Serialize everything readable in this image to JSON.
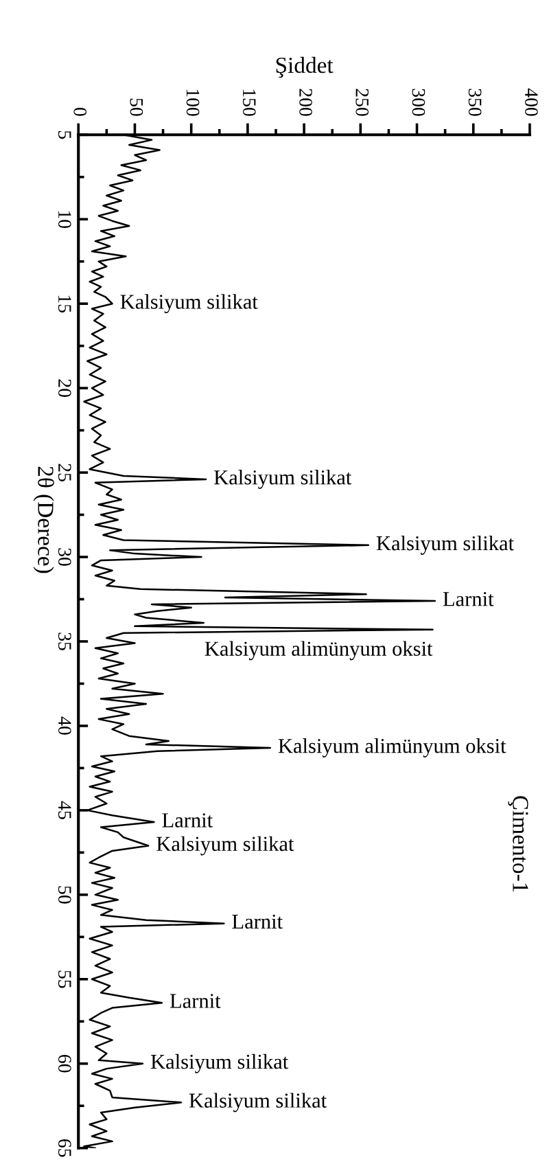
{
  "chart_data": {
    "type": "line",
    "orientation": "horizontal",
    "title": "Çimento-1",
    "ylabel": "2θ (Derece)",
    "xlabel": "Şiddet",
    "ylim": [
      65,
      5
    ],
    "yticks": [
      5,
      10,
      15,
      20,
      25,
      30,
      35,
      40,
      45,
      50,
      55,
      60,
      65
    ],
    "xlim": [
      0,
      400
    ],
    "xticks": [
      0,
      50,
      100,
      150,
      200,
      250,
      300,
      350,
      400
    ],
    "marker": "none",
    "line_style": "solid",
    "series": [
      {
        "color": "#000000",
        "x": [
          5.0,
          5.3,
          5.6,
          5.9,
          6.2,
          6.5,
          6.8,
          7.1,
          7.4,
          7.7,
          8.0,
          8.3,
          8.6,
          8.9,
          9.2,
          9.5,
          9.8,
          10.1,
          10.4,
          10.7,
          11.0,
          11.3,
          11.6,
          11.9,
          12.2,
          12.5,
          12.8,
          13.1,
          13.4,
          13.7,
          14.0,
          14.3,
          14.6,
          15.0,
          15.3,
          15.6,
          16.0,
          16.4,
          16.8,
          17.2,
          17.6,
          18.0,
          18.4,
          18.8,
          19.2,
          19.6,
          20.0,
          20.4,
          20.8,
          21.2,
          21.6,
          22.0,
          22.4,
          22.8,
          23.2,
          23.6,
          24.0,
          24.4,
          24.8,
          25.2,
          25.4,
          25.6,
          26.0,
          26.3,
          26.6,
          26.9,
          27.2,
          27.5,
          27.8,
          28.1,
          28.4,
          28.7,
          29.0,
          29.3,
          29.6,
          29.8,
          30.0,
          30.2,
          30.5,
          30.8,
          31.1,
          31.4,
          31.7,
          31.9,
          32.2,
          32.4,
          32.6,
          32.8,
          33.0,
          33.2,
          33.4,
          33.6,
          33.9,
          34.1,
          34.3,
          34.5,
          34.8,
          35.1,
          35.4,
          35.7,
          36.0,
          36.3,
          36.6,
          36.9,
          37.2,
          37.5,
          37.8,
          38.1,
          38.4,
          38.7,
          39.0,
          39.3,
          39.6,
          39.9,
          40.2,
          40.6,
          40.9,
          41.1,
          41.3,
          41.5,
          41.8,
          42.1,
          42.4,
          42.7,
          43.0,
          43.3,
          43.6,
          43.9,
          44.2,
          44.6,
          45.0,
          45.3,
          45.7,
          46.0,
          46.3,
          46.6,
          47.1,
          47.4,
          47.8,
          48.1,
          48.4,
          48.7,
          49.0,
          49.3,
          49.6,
          50.0,
          50.3,
          50.6,
          50.9,
          51.2,
          51.5,
          51.7,
          51.9,
          52.2,
          52.6,
          53.0,
          53.4,
          53.8,
          54.2,
          54.6,
          55.0,
          55.4,
          55.8,
          56.1,
          56.4,
          56.7,
          57.0,
          57.4,
          57.8,
          58.2,
          58.6,
          59.0,
          59.4,
          59.8,
          60.0,
          60.3,
          60.6,
          60.9,
          61.2,
          61.6,
          62.0,
          62.3,
          62.6,
          62.9,
          63.3,
          63.6,
          64.0,
          64.3,
          64.6,
          64.9,
          65.0
        ],
        "values": [
          40,
          65,
          45,
          72,
          50,
          60,
          38,
          55,
          35,
          48,
          28,
          40,
          25,
          38,
          22,
          35,
          18,
          30,
          45,
          20,
          32,
          15,
          28,
          12,
          42,
          18,
          25,
          12,
          22,
          10,
          20,
          14,
          24,
          30,
          12,
          22,
          14,
          24,
          12,
          22,
          10,
          25,
          8,
          20,
          10,
          24,
          12,
          22,
          5,
          20,
          10,
          24,
          12,
          20,
          14,
          28,
          12,
          22,
          10,
          40,
          113,
          15,
          30,
          25,
          38,
          18,
          40,
          20,
          35,
          15,
          38,
          22,
          40,
          257,
          28,
          50,
          109,
          20,
          12,
          30,
          15,
          32,
          25,
          55,
          255,
          130,
          316,
          65,
          100,
          70,
          50,
          60,
          111,
          50,
          314,
          40,
          25,
          50,
          15,
          35,
          20,
          40,
          22,
          35,
          18,
          50,
          30,
          75,
          20,
          60,
          25,
          45,
          18,
          40,
          30,
          45,
          80,
          60,
          170,
          70,
          20,
          30,
          12,
          32,
          15,
          28,
          10,
          30,
          15,
          25,
          8,
          30,
          67,
          20,
          35,
          40,
          62,
          30,
          18,
          10,
          28,
          15,
          32,
          12,
          30,
          15,
          35,
          12,
          30,
          20,
          60,
          129,
          20,
          30,
          10,
          30,
          12,
          28,
          15,
          30,
          12,
          28,
          20,
          45,
          74,
          30,
          20,
          10,
          28,
          12,
          30,
          15,
          25,
          18,
          57,
          25,
          12,
          30,
          15,
          28,
          30,
          91,
          50,
          20,
          25,
          10,
          25,
          12,
          30,
          5,
          15
        ]
      }
    ],
    "annotations": [
      {
        "text": "Kalsiyum silikat",
        "y": 15.0,
        "x": 30
      },
      {
        "text": "Kalsiyum silikat",
        "y": 25.4,
        "x": 113
      },
      {
        "text": "Kalsiyum silikat",
        "y": 29.3,
        "x": 257
      },
      {
        "text": "Larnit",
        "y": 32.6,
        "x": 316
      },
      {
        "text": "Kalsiyum alimünyum oksit",
        "y": 34.3,
        "x": 314
      },
      {
        "text": "Kalsiyum alimünyum oksit",
        "y": 41.3,
        "x": 170
      },
      {
        "text": "Larnit",
        "y": 45.7,
        "x": 67
      },
      {
        "text": "Kalsiyum silikat",
        "y": 47.1,
        "x": 62
      },
      {
        "text": "Larnit",
        "y": 51.7,
        "x": 129
      },
      {
        "text": "Larnit",
        "y": 56.4,
        "x": 74
      },
      {
        "text": "Kalsiyum silikat",
        "y": 60.0,
        "x": 57
      },
      {
        "text": "Kalsiyum silikat",
        "y": 62.3,
        "x": 91
      }
    ]
  }
}
